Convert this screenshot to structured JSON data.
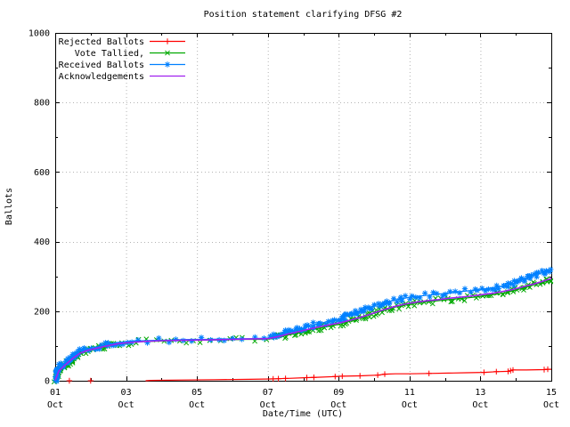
{
  "chart_data": {
    "type": "line",
    "title": "Position statement clarifying DFSG #2",
    "xlabel": "Date/Time (UTC)",
    "ylabel": "Ballots",
    "x_domain": [
      1,
      15
    ],
    "ylim": [
      0,
      1000
    ],
    "x_month": "Oct",
    "x_major": [
      {
        "day": 1,
        "label": "01"
      },
      {
        "day": 3,
        "label": "03"
      },
      {
        "day": 5,
        "label": "05"
      },
      {
        "day": 7,
        "label": "07"
      },
      {
        "day": 9,
        "label": "09"
      },
      {
        "day": 11,
        "label": "11"
      },
      {
        "day": 13,
        "label": "13"
      },
      {
        "day": 15,
        "label": "15"
      }
    ],
    "x_minor_days": [
      2,
      4,
      6,
      8,
      10,
      12,
      14
    ],
    "x_grid_days": [
      3,
      5,
      7,
      9,
      11,
      13
    ],
    "y_major_values": [
      0,
      200,
      400,
      600,
      800,
      1000
    ],
    "y_minor_values": [
      100,
      300,
      500,
      700,
      900
    ],
    "y_grid_values": [
      200,
      400,
      600,
      800
    ],
    "grid_color": "#b4b4b4",
    "legend_position": "top-left-inside",
    "series": [
      {
        "id": "rejected-ballots",
        "name": "Rejected Ballots",
        "color": "#ff0000",
        "marker": "plus",
        "marker_mode": "explicit",
        "marker_days": [
          1.4,
          2.0,
          7.15,
          7.3,
          7.5,
          8.1,
          8.3,
          8.9,
          9.1,
          9.6,
          10.1,
          10.3,
          11.55,
          13.1,
          13.45,
          13.78,
          13.85,
          13.92,
          14.8,
          14.9
        ],
        "points": [
          [
            3.55,
            0
          ],
          [
            3.7,
            1
          ],
          [
            4.5,
            2
          ],
          [
            5.5,
            3
          ],
          [
            6.5,
            4
          ],
          [
            7.1,
            5
          ],
          [
            7.3,
            6
          ],
          [
            7.6,
            7
          ],
          [
            8.1,
            9
          ],
          [
            8.4,
            10
          ],
          [
            8.9,
            12
          ],
          [
            9.1,
            13
          ],
          [
            9.6,
            14
          ],
          [
            10.1,
            16
          ],
          [
            10.3,
            19
          ],
          [
            10.6,
            20
          ],
          [
            11,
            20
          ],
          [
            11.55,
            21
          ],
          [
            12.1,
            22
          ],
          [
            12.6,
            23
          ],
          [
            13.1,
            24
          ],
          [
            13.45,
            26
          ],
          [
            13.8,
            27
          ],
          [
            13.9,
            31
          ],
          [
            14.3,
            31
          ],
          [
            14.8,
            32
          ],
          [
            14.9,
            33
          ],
          [
            15,
            33
          ]
        ]
      },
      {
        "id": "vote-tallied",
        "name": "Vote Tallied,",
        "color": "#00a800",
        "marker": "cross",
        "marker_mode": "dense",
        "points": [
          [
            1,
            1
          ],
          [
            1.05,
            18
          ],
          [
            1.1,
            30
          ],
          [
            1.2,
            38
          ],
          [
            1.3,
            46
          ],
          [
            1.45,
            58
          ],
          [
            1.6,
            70
          ],
          [
            1.75,
            80
          ],
          [
            1.9,
            86
          ],
          [
            2.1,
            91
          ],
          [
            2.35,
            96
          ],
          [
            2.6,
            101
          ],
          [
            2.85,
            106
          ],
          [
            3.1,
            109
          ],
          [
            3.4,
            112
          ],
          [
            3.7,
            113
          ],
          [
            4,
            114
          ],
          [
            4.4,
            115
          ],
          [
            4.8,
            116
          ],
          [
            5.2,
            117
          ],
          [
            5.6,
            117
          ],
          [
            6,
            118
          ],
          [
            6.4,
            119
          ],
          [
            6.8,
            119
          ],
          [
            7.05,
            120
          ],
          [
            7.25,
            124
          ],
          [
            7.45,
            129
          ],
          [
            7.65,
            133
          ],
          [
            7.85,
            138
          ],
          [
            8.05,
            143
          ],
          [
            8.25,
            147
          ],
          [
            8.45,
            151
          ],
          [
            8.65,
            155
          ],
          [
            8.85,
            159
          ],
          [
            9.05,
            163
          ],
          [
            9.25,
            169
          ],
          [
            9.45,
            175
          ],
          [
            9.65,
            182
          ],
          [
            9.85,
            189
          ],
          [
            10.05,
            196
          ],
          [
            10.25,
            202
          ],
          [
            10.45,
            208
          ],
          [
            10.65,
            213
          ],
          [
            10.85,
            217
          ],
          [
            11.05,
            221
          ],
          [
            11.3,
            225
          ],
          [
            11.6,
            228
          ],
          [
            11.9,
            231
          ],
          [
            12.2,
            234
          ],
          [
            12.5,
            237
          ],
          [
            12.8,
            240
          ],
          [
            13.1,
            244
          ],
          [
            13.4,
            248
          ],
          [
            13.7,
            253
          ],
          [
            13.95,
            259
          ],
          [
            14.15,
            265
          ],
          [
            14.35,
            271
          ],
          [
            14.55,
            277
          ],
          [
            14.75,
            282
          ],
          [
            14.9,
            286
          ],
          [
            15,
            290
          ]
        ]
      },
      {
        "id": "received-ballots",
        "name": "Received Ballots",
        "color": "#0080ff",
        "marker": "star",
        "marker_mode": "dense",
        "points": [
          [
            1,
            2
          ],
          [
            1.03,
            12
          ],
          [
            1.06,
            25
          ],
          [
            1.1,
            36
          ],
          [
            1.15,
            42
          ],
          [
            1.25,
            46
          ],
          [
            1.35,
            56
          ],
          [
            1.45,
            66
          ],
          [
            1.55,
            76
          ],
          [
            1.65,
            83
          ],
          [
            1.78,
            88
          ],
          [
            1.95,
            92
          ],
          [
            2.15,
            96
          ],
          [
            2.35,
            101
          ],
          [
            2.55,
            106
          ],
          [
            2.75,
            110
          ],
          [
            2.95,
            112
          ],
          [
            3.2,
            114
          ],
          [
            3.5,
            115
          ],
          [
            3.8,
            116
          ],
          [
            4.1,
            117
          ],
          [
            4.5,
            118
          ],
          [
            4.9,
            119
          ],
          [
            5.3,
            119
          ],
          [
            5.7,
            120
          ],
          [
            6.1,
            121
          ],
          [
            6.5,
            121
          ],
          [
            6.8,
            122
          ],
          [
            7.05,
            123
          ],
          [
            7.2,
            127
          ],
          [
            7.35,
            132
          ],
          [
            7.5,
            137
          ],
          [
            7.65,
            141
          ],
          [
            7.8,
            146
          ],
          [
            7.95,
            150
          ],
          [
            8.1,
            155
          ],
          [
            8.25,
            159
          ],
          [
            8.4,
            163
          ],
          [
            8.55,
            167
          ],
          [
            8.7,
            170
          ],
          [
            8.85,
            173
          ],
          [
            9,
            177
          ],
          [
            9.15,
            183
          ],
          [
            9.3,
            189
          ],
          [
            9.45,
            195
          ],
          [
            9.6,
            201
          ],
          [
            9.75,
            207
          ],
          [
            9.9,
            212
          ],
          [
            10.05,
            217
          ],
          [
            10.2,
            222
          ],
          [
            10.35,
            226
          ],
          [
            10.5,
            230
          ],
          [
            10.65,
            233
          ],
          [
            10.8,
            236
          ],
          [
            11,
            240
          ],
          [
            11.25,
            243
          ],
          [
            11.5,
            246
          ],
          [
            11.75,
            248
          ],
          [
            12,
            251
          ],
          [
            12.25,
            254
          ],
          [
            12.5,
            257
          ],
          [
            12.75,
            259
          ],
          [
            13,
            262
          ],
          [
            13.25,
            266
          ],
          [
            13.5,
            270
          ],
          [
            13.75,
            274
          ],
          [
            13.95,
            280
          ],
          [
            14.1,
            286
          ],
          [
            14.25,
            292
          ],
          [
            14.4,
            298
          ],
          [
            14.55,
            304
          ],
          [
            14.7,
            309
          ],
          [
            14.85,
            314
          ],
          [
            15,
            320
          ]
        ]
      },
      {
        "id": "acknowledgements",
        "name": "Acknowledgements",
        "color": "#a020f0",
        "marker": "none",
        "marker_mode": "none",
        "points": [
          [
            1,
            1
          ],
          [
            1.1,
            28
          ],
          [
            1.3,
            47
          ],
          [
            1.5,
            65
          ],
          [
            1.7,
            79
          ],
          [
            1.9,
            87
          ],
          [
            2.2,
            94
          ],
          [
            2.5,
            101
          ],
          [
            2.8,
            107
          ],
          [
            3.1,
            110
          ],
          [
            3.5,
            113
          ],
          [
            4,
            115
          ],
          [
            4.5,
            116
          ],
          [
            5,
            117
          ],
          [
            5.5,
            118
          ],
          [
            6,
            119
          ],
          [
            6.5,
            120
          ],
          [
            7,
            121
          ],
          [
            7.3,
            127
          ],
          [
            7.6,
            135
          ],
          [
            7.9,
            142
          ],
          [
            8.2,
            149
          ],
          [
            8.5,
            156
          ],
          [
            8.8,
            162
          ],
          [
            9.1,
            168
          ],
          [
            9.4,
            176
          ],
          [
            9.7,
            185
          ],
          [
            10,
            195
          ],
          [
            10.3,
            205
          ],
          [
            10.6,
            214
          ],
          [
            10.9,
            221
          ],
          [
            11.2,
            226
          ],
          [
            11.5,
            230
          ],
          [
            11.8,
            233
          ],
          [
            12.1,
            237
          ],
          [
            12.4,
            240
          ],
          [
            12.7,
            243
          ],
          [
            13,
            247
          ],
          [
            13.3,
            251
          ],
          [
            13.6,
            256
          ],
          [
            13.9,
            262
          ],
          [
            14.2,
            270
          ],
          [
            14.5,
            278
          ],
          [
            14.8,
            287
          ],
          [
            15,
            294
          ]
        ]
      }
    ]
  }
}
